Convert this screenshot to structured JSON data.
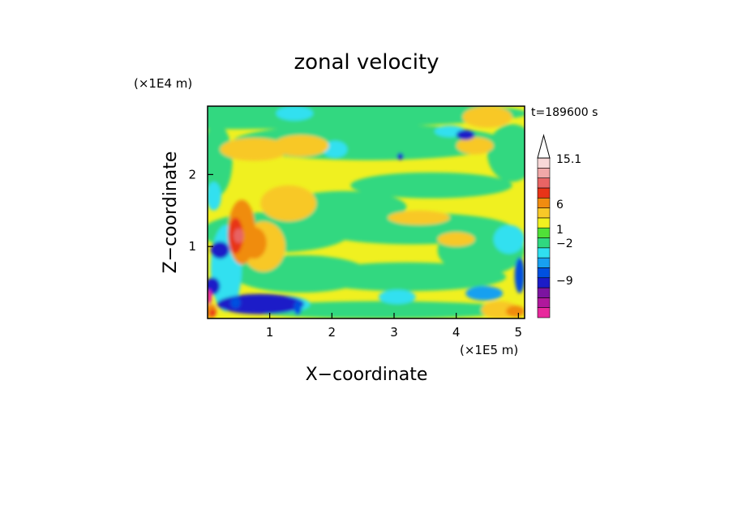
{
  "chart_data": {
    "type": "heatmap",
    "title": "zonal velocity",
    "xlabel": "X−coordinate",
    "ylabel": "Z−coordinate",
    "x_unit": "(×1E5 m)",
    "y_unit": "(×1E4 m)",
    "time_label": "t=189600 s",
    "xlim": [
      0,
      5.1
    ],
    "ylim": [
      0,
      2.95
    ],
    "x_ticks": [
      "1",
      "2",
      "3",
      "4",
      "5"
    ],
    "y_ticks": [
      "1",
      "2"
    ],
    "colorbar": {
      "labels": [
        "15.1",
        "6",
        "1",
        "−2",
        "−9"
      ],
      "levels": [
        -15,
        -12,
        -9,
        -6,
        -3,
        -2,
        -1,
        0,
        1,
        2,
        3,
        6,
        9,
        12,
        15.1
      ],
      "colors": [
        "#e8289c",
        "#b0189c",
        "#7c14a0",
        "#1c1cc8",
        "#0050e0",
        "#18a0f0",
        "#30e0f0",
        "#30d880",
        "#50e038",
        "#f0f020",
        "#f8c828",
        "#f08c10",
        "#e83418",
        "#e86464",
        "#f0a8a8",
        "#f8d8d8"
      ]
    },
    "grid": false,
    "legend": "colorbar-right"
  }
}
